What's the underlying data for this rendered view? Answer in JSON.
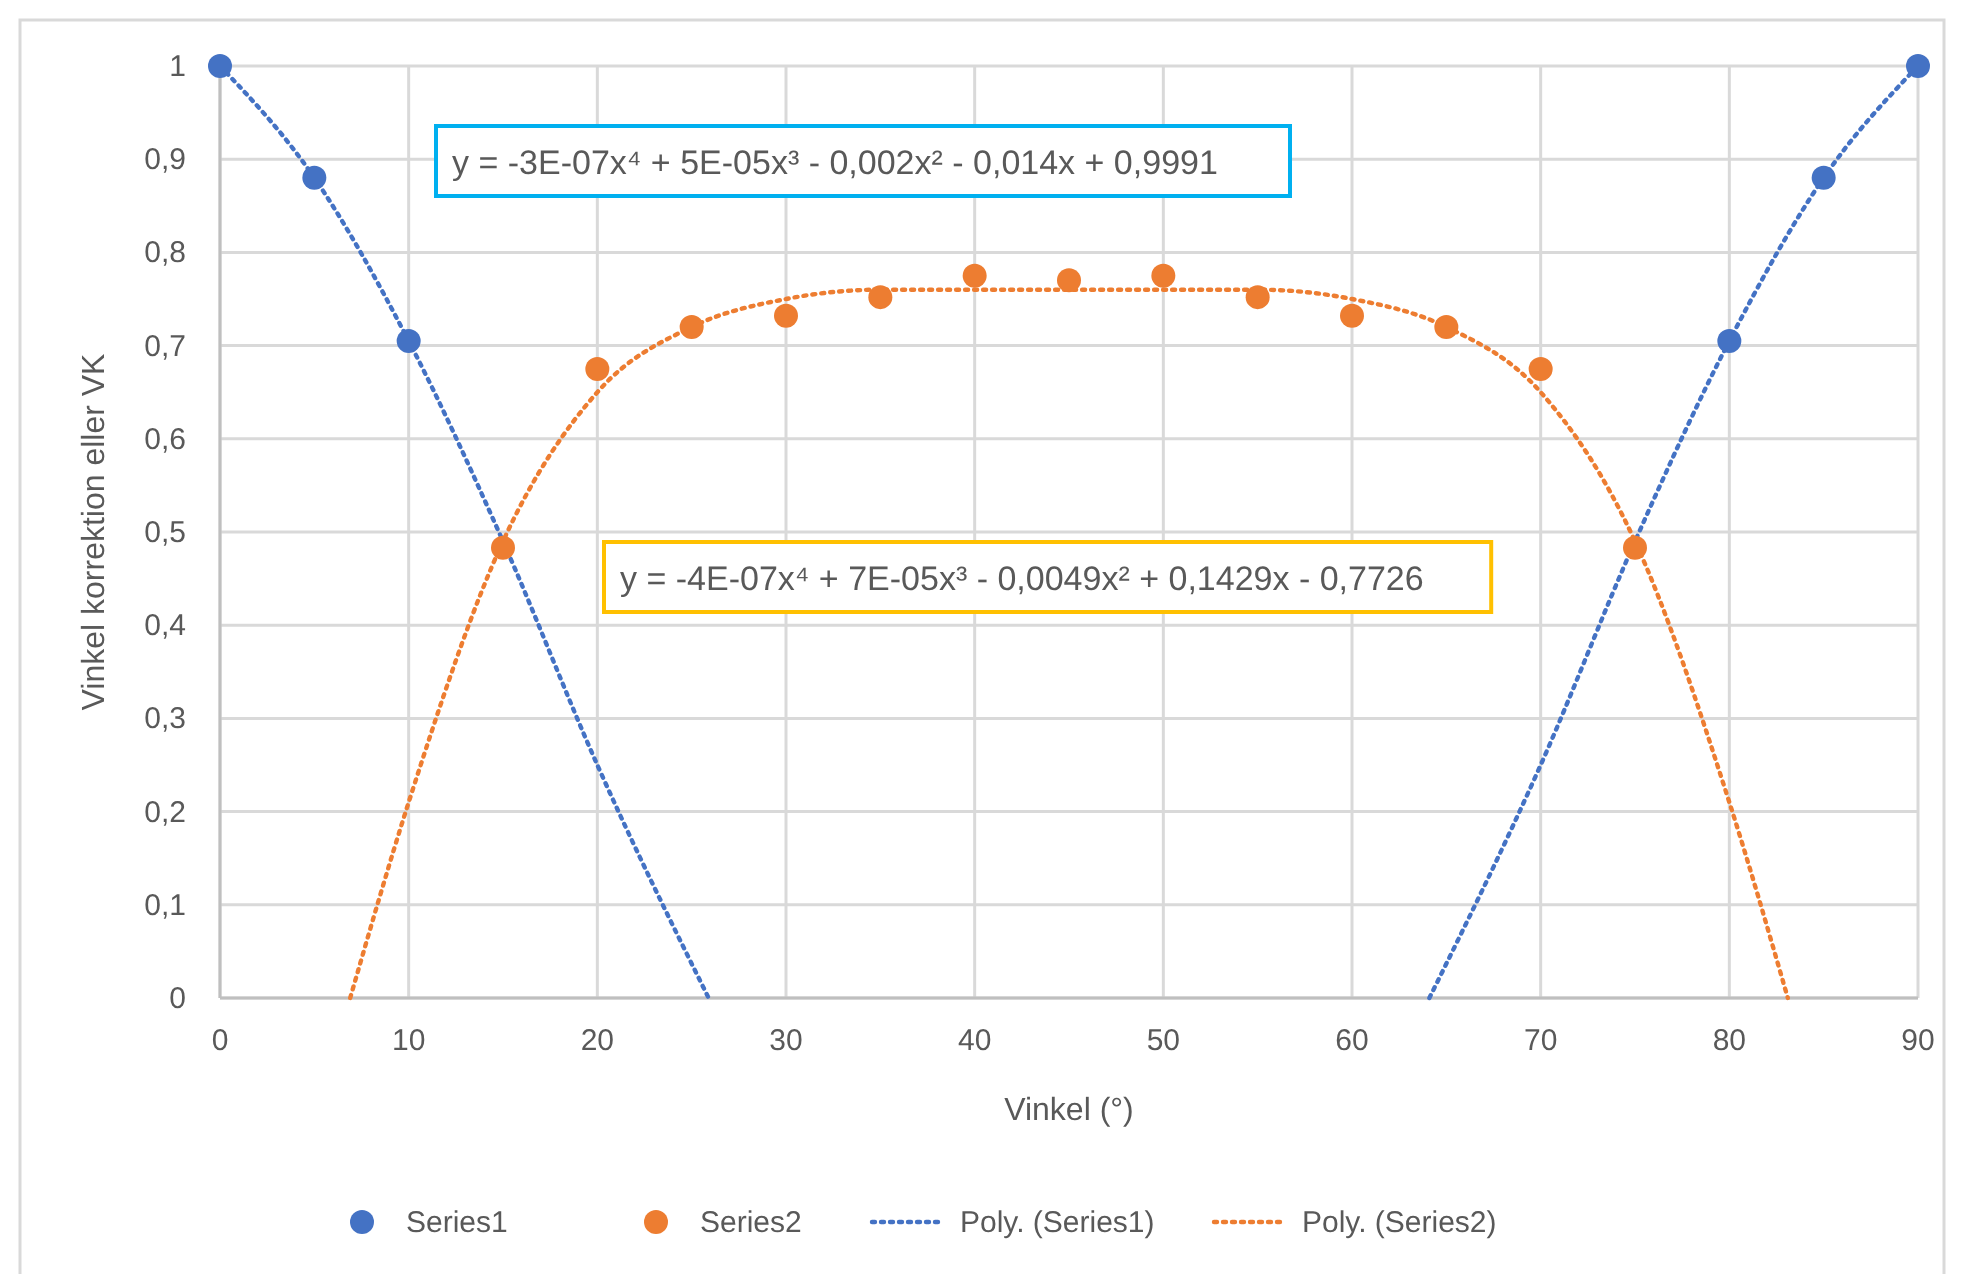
{
  "chart_data": {
    "type": "scatter",
    "xlabel": "Vinkel (°)",
    "ylabel": "Vinkel korrektion eller VK",
    "xlim": [
      0,
      90
    ],
    "xticks": [
      0,
      10,
      20,
      30,
      40,
      50,
      60,
      70,
      80,
      90
    ],
    "ylim": [
      0,
      1
    ],
    "yticks": [
      {
        "value": 0,
        "label": "0"
      },
      {
        "value": 0.1,
        "label": "0,1"
      },
      {
        "value": 0.2,
        "label": "0,2"
      },
      {
        "value": 0.3,
        "label": "0,3"
      },
      {
        "value": 0.4,
        "label": "0,4"
      },
      {
        "value": 0.5,
        "label": "0,5"
      },
      {
        "value": 0.6,
        "label": "0,6"
      },
      {
        "value": 0.7,
        "label": "0,7"
      },
      {
        "value": 0.8,
        "label": "0,8"
      },
      {
        "value": 0.9,
        "label": "0,9"
      },
      {
        "value": 1,
        "label": "1"
      }
    ],
    "grid": true,
    "legend": "bottom",
    "series": [
      {
        "name": "Series1",
        "marker": "circle",
        "color": "#4472c4",
        "x": [
          0,
          5,
          10,
          80,
          85,
          90
        ],
        "values": [
          1,
          0.88,
          0.705,
          0.705,
          0.88,
          1
        ]
      },
      {
        "name": "Series2",
        "marker": "circle",
        "color": "#ed7d31",
        "x": [
          15,
          20,
          25,
          30,
          35,
          40,
          45,
          50,
          55,
          60,
          65,
          70,
          75
        ],
        "values": [
          0.483,
          0.675,
          0.72,
          0.732,
          0.752,
          0.775,
          0.77,
          0.775,
          0.752,
          0.732,
          0.72,
          0.675,
          0.483
        ]
      },
      {
        "name": "Poly. (Series1)",
        "type": "line",
        "marker": "none",
        "line_style": "dotted",
        "color": "#4472c4",
        "x": [
          0,
          5,
          10,
          15,
          20,
          25.9,
          45,
          64.1,
          70,
          75,
          80,
          85,
          90
        ],
        "values": [
          1,
          0.88,
          0.705,
          0.49,
          0.25,
          0,
          null,
          0,
          0.25,
          0.49,
          0.705,
          0.88,
          1
        ]
      },
      {
        "name": "Poly. (Series2)",
        "type": "line",
        "marker": "none",
        "line_style": "dotted",
        "color": "#ed7d31",
        "x": [
          6.9,
          10,
          15,
          20,
          25,
          30,
          35,
          40,
          50,
          55,
          60,
          65,
          70,
          75,
          80,
          83.1
        ],
        "values": [
          0,
          0.21,
          0.49,
          0.65,
          0.72,
          0.75,
          0.76,
          0.76,
          0.76,
          0.76,
          0.75,
          0.72,
          0.65,
          0.49,
          0.21,
          0
        ]
      }
    ],
    "annotations": [
      "y = -3E-07x⁴ + 5E-05x³ - 0,002x² - 0,014x + 0,9991",
      "y = -4E-07x⁴ + 7E-05x³ - 0,0049x² + 0,1429x - 0,7726"
    ]
  }
}
